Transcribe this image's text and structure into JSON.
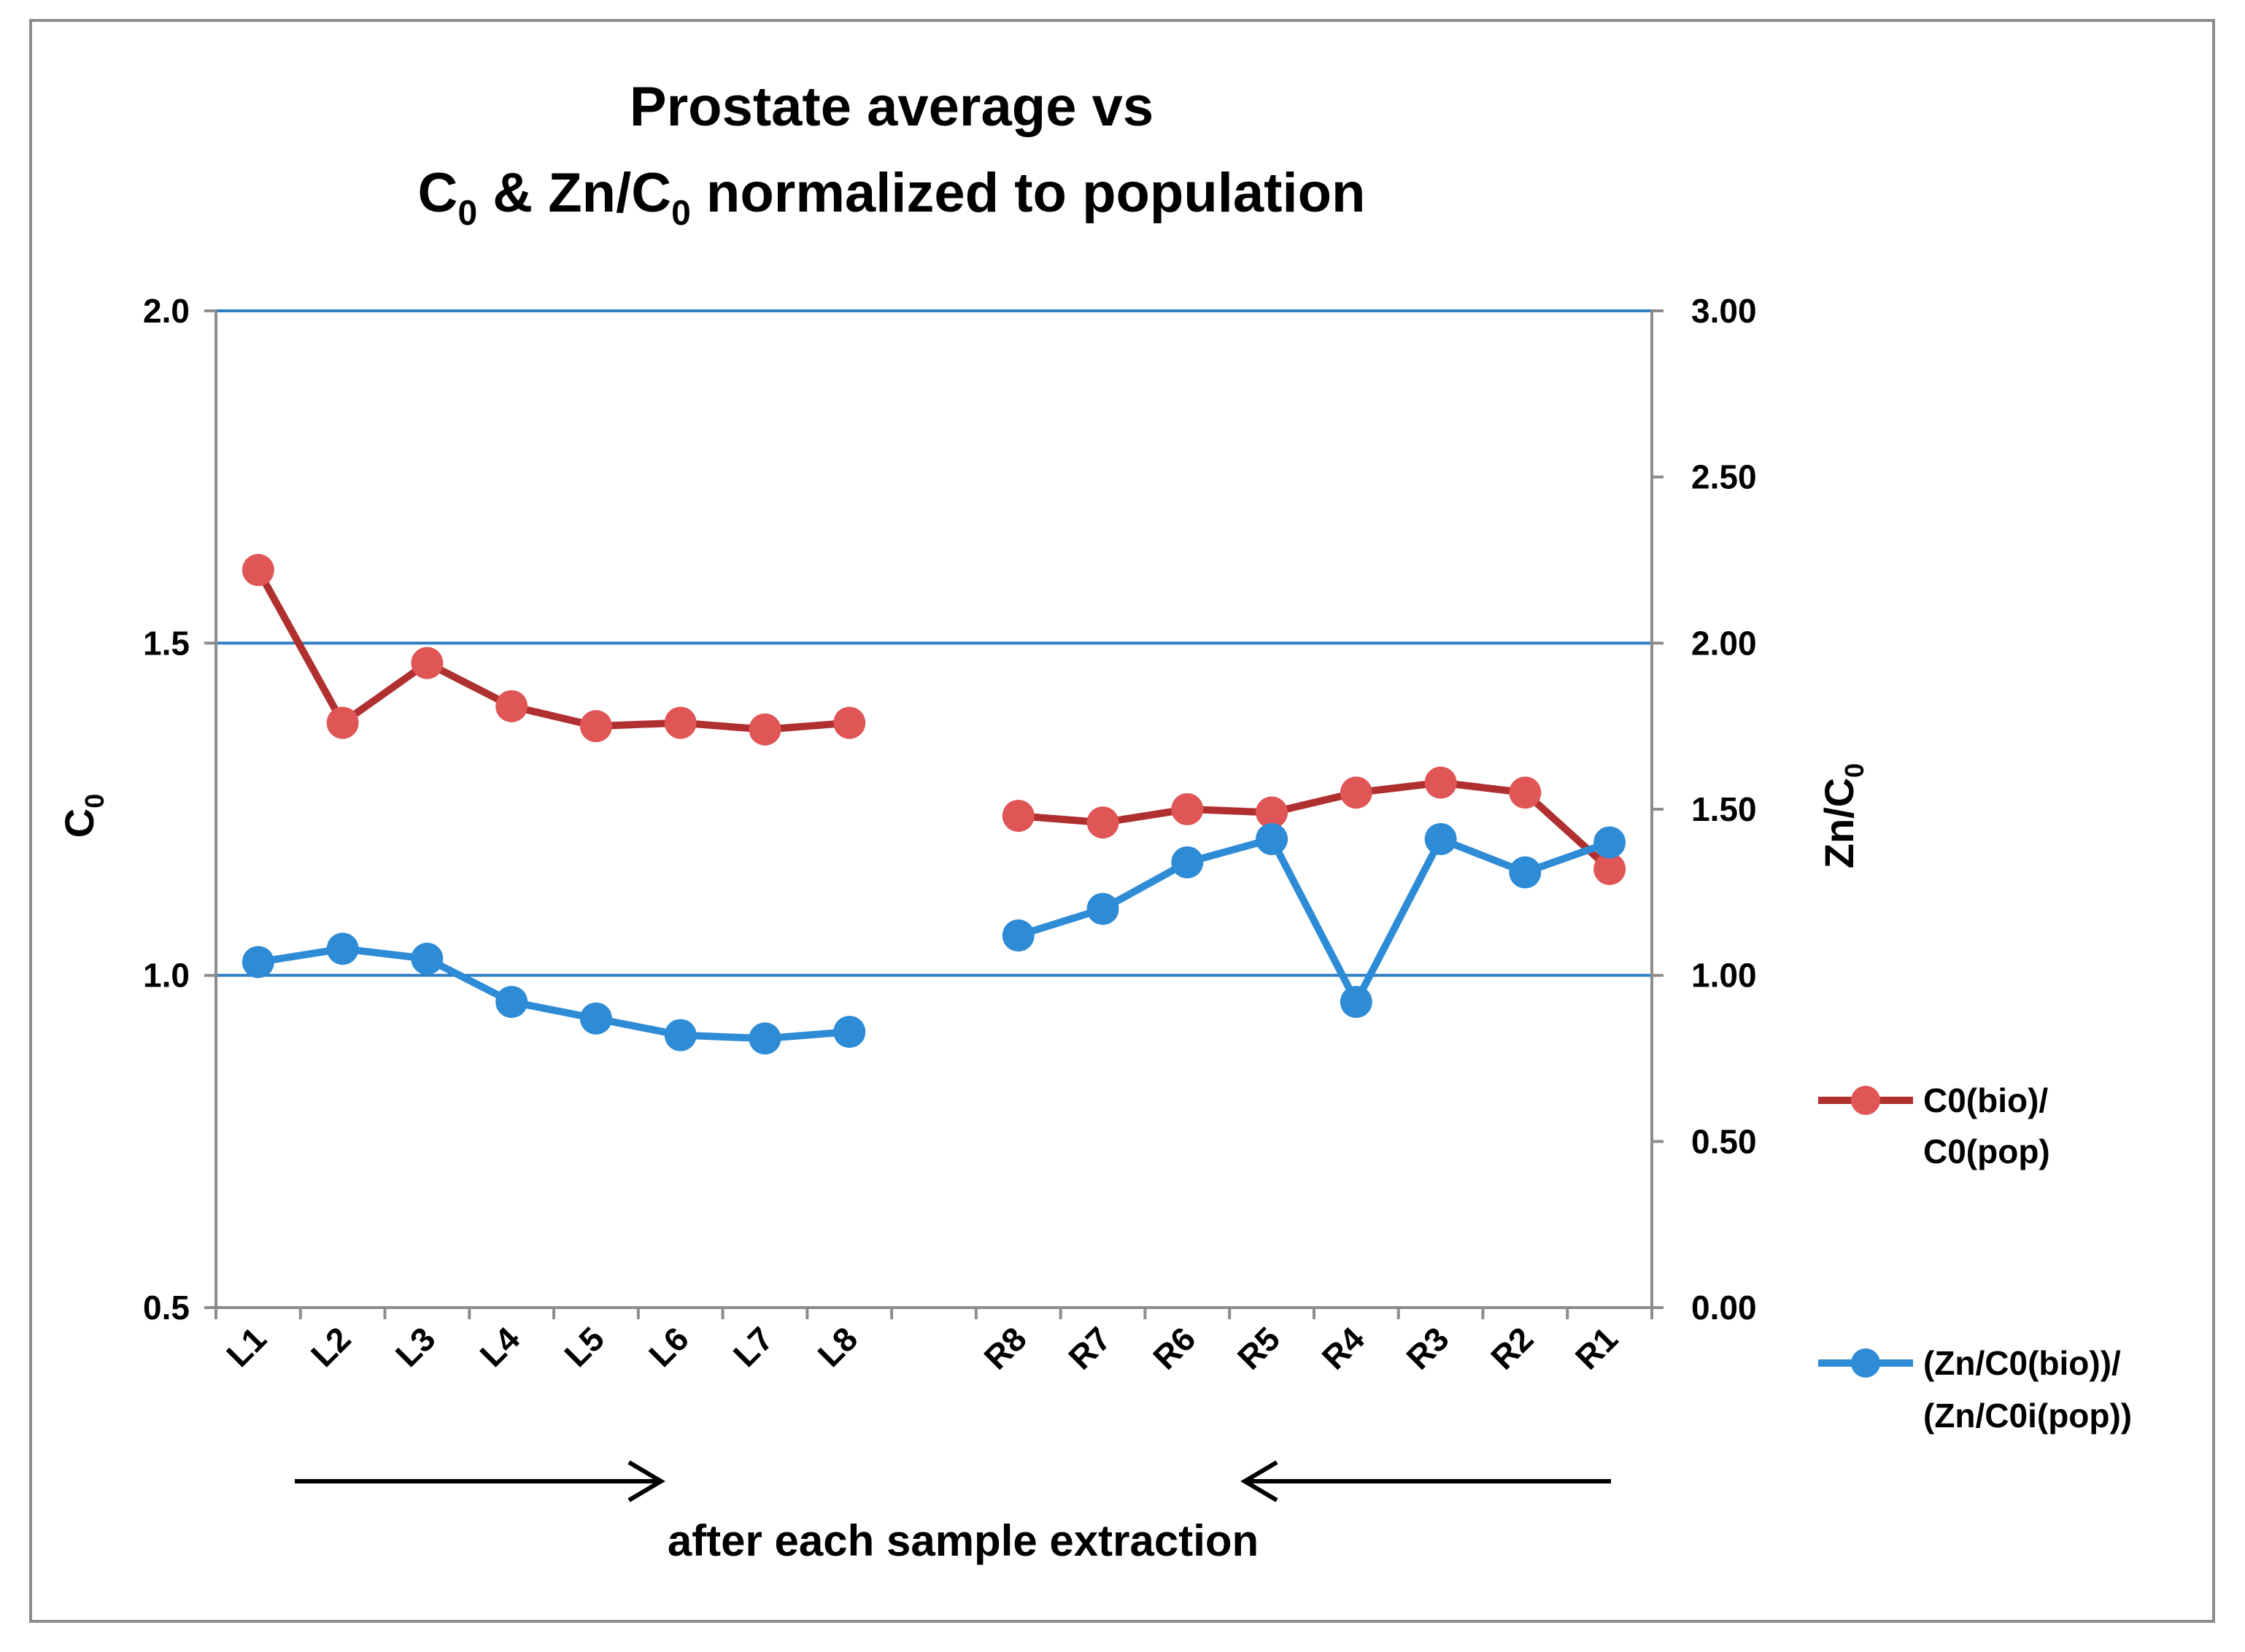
{
  "chart_data": {
    "type": "line",
    "title": [
      "Prostate average vs",
      "C0 & Zn/C0 normalized to population"
    ],
    "categories": [
      "L1",
      "L2",
      "L3",
      "L4",
      "L5",
      "L6",
      "L7",
      "L8",
      "",
      "R8",
      "R7",
      "R6",
      "R5",
      "R4",
      "R3",
      "R2",
      "R1"
    ],
    "ylabel": "C0",
    "y2label": "Zn/C0",
    "ylim": [
      0.5,
      2.0
    ],
    "yticks": [
      "0.5",
      "1.0",
      "1.5",
      "2.0"
    ],
    "y2lim": [
      0.0,
      3.0
    ],
    "y2ticks": [
      "0.00",
      "0.50",
      "1.00",
      "1.50",
      "2.00",
      "2.50",
      "3.00"
    ],
    "grid": true,
    "legend_position": "right",
    "series": [
      {
        "name": "C0(bio)/ C0(pop)",
        "legend_lines": [
          "C0(bio)/",
          "C0(pop)"
        ],
        "axis": "left",
        "color": "#c0392b",
        "line_color": "#b03030",
        "marker_color": "#e05555",
        "values": [
          1.61,
          1.38,
          1.47,
          1.405,
          1.375,
          1.38,
          1.37,
          1.38,
          null,
          1.24,
          1.23,
          1.25,
          1.245,
          1.275,
          1.29,
          1.275,
          1.16
        ]
      },
      {
        "name": "(Zn/C0(bio))/ (Zn/C0i(pop))",
        "legend_lines": [
          "(Zn/C0(bio))/",
          "(Zn/C0i(pop))"
        ],
        "axis": "right",
        "color": "#2e8bd6",
        "line_color": "#2e8bd6",
        "marker_color": "#2e8bd6",
        "values": [
          1.04,
          1.08,
          1.05,
          0.92,
          0.87,
          0.82,
          0.81,
          0.83,
          null,
          1.12,
          1.2,
          1.34,
          1.41,
          0.92,
          1.41,
          1.31,
          1.4
        ]
      }
    ],
    "annotations": {
      "caption": "after each sample extraction",
      "arrows": [
        "left group arrow pointing right",
        "right group arrow pointing left"
      ]
    }
  }
}
